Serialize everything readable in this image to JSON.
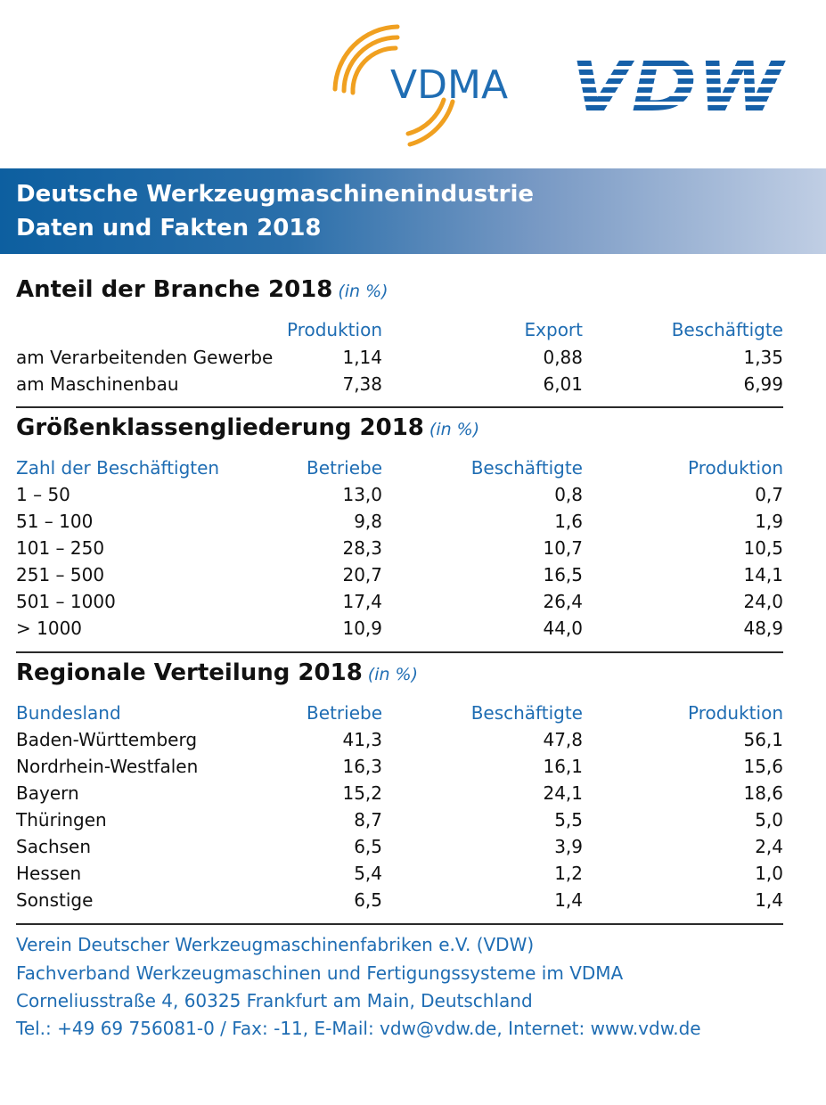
{
  "logos": {
    "vdma_text": "VDMA",
    "vdw_text": "VDW",
    "vdma_text_color": "#1f6db3",
    "vdma_arc_color": "#f0a020",
    "vdw_color": "#1660a8"
  },
  "banner": {
    "line1": "Deutsche Werkzeugmaschinenindustrie",
    "line2": "Daten und Fakten 2018"
  },
  "section1": {
    "title": "Anteil der Branche 2018",
    "unit": "(in %)",
    "headers": [
      "",
      "Produktion",
      "Export",
      "Beschäftigte"
    ],
    "rows": [
      [
        "am Verarbeitenden Gewerbe",
        "1,14",
        "0,88",
        "1,35"
      ],
      [
        "am Maschinenbau",
        "7,38",
        "6,01",
        "6,99"
      ]
    ]
  },
  "section2": {
    "title": "Größenklassengliederung 2018",
    "unit": "(in %)",
    "headers": [
      "Zahl der Beschäftigten",
      "Betriebe",
      "Beschäftigte",
      "Produktion"
    ],
    "rows": [
      [
        "1 – 50",
        "13,0",
        "0,8",
        "0,7"
      ],
      [
        "51 – 100",
        "9,8",
        "1,6",
        "1,9"
      ],
      [
        "101 – 250",
        "28,3",
        "10,7",
        "10,5"
      ],
      [
        "251 – 500",
        "20,7",
        "16,5",
        "14,1"
      ],
      [
        "501 – 1000",
        "17,4",
        "26,4",
        "24,0"
      ],
      [
        "> 1000",
        "10,9",
        "44,0",
        "48,9"
      ]
    ]
  },
  "section3": {
    "title": "Regionale Verteilung 2018",
    "unit": "(in %)",
    "headers": [
      "Bundesland",
      "Betriebe",
      "Beschäftigte",
      "Produktion"
    ],
    "rows": [
      [
        "Baden-Württemberg",
        "41,3",
        "47,8",
        "56,1"
      ],
      [
        "Nordrhein-Westfalen",
        "16,3",
        "16,1",
        "15,6"
      ],
      [
        "Bayern",
        "15,2",
        "24,1",
        "18,6"
      ],
      [
        "Thüringen",
        "8,7",
        "5,5",
        "5,0"
      ],
      [
        "Sachsen",
        "6,5",
        "3,9",
        "2,4"
      ],
      [
        "Hessen",
        "5,4",
        "1,2",
        "1,0"
      ],
      [
        "Sonstige",
        "6,5",
        "1,4",
        "1,4"
      ]
    ]
  },
  "footer": {
    "line1": "Verein Deutscher Werkzeugmaschinenfabriken e.V. (VDW)",
    "line2": "Fachverband Werkzeugmaschinen und Fertigungssysteme im VDMA",
    "line3": "Corneliusstraße 4, 60325 Frankfurt am Main, Deutschland",
    "line4": "Tel.: +49 69 756081-0 / Fax: -11, E-Mail: vdw@vdw.de, Internet: www.vdw.de"
  }
}
